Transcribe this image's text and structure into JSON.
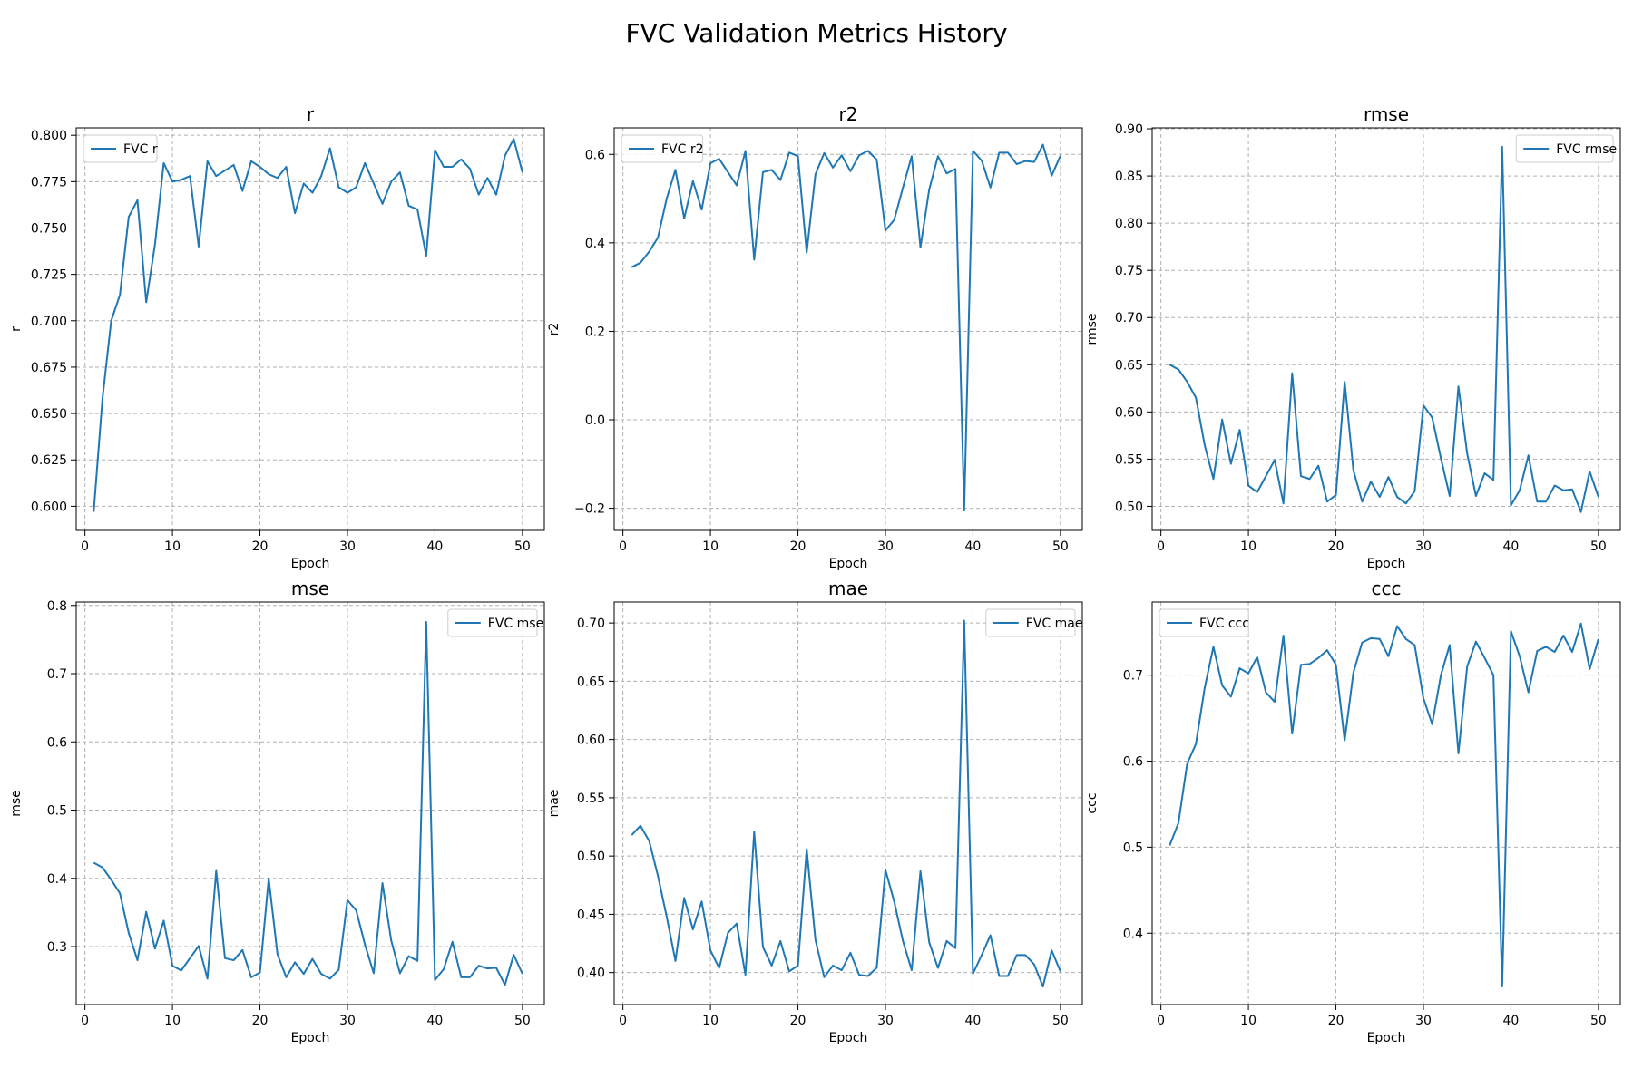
{
  "figure": {
    "title": "FVC Validation Metrics History"
  },
  "colors": {
    "series": "#1f77b4",
    "grid": "#b0b0b0"
  },
  "chart_data": [
    {
      "type": "line",
      "title": "r",
      "xlabel": "Epoch",
      "ylabel": "r",
      "xlim": [
        -1,
        52.5
      ],
      "ylim": [
        0.587,
        0.804
      ],
      "xticks": [
        0,
        10,
        20,
        30,
        40,
        50
      ],
      "yticks": [
        0.6,
        0.625,
        0.65,
        0.675,
        0.7,
        0.725,
        0.75,
        0.775,
        0.8
      ],
      "ytick_labels": [
        "0.600",
        "0.625",
        "0.650",
        "0.675",
        "0.700",
        "0.725",
        "0.750",
        "0.775",
        "0.800"
      ],
      "grid": true,
      "legend": "top-left",
      "series": [
        {
          "name": "FVC r",
          "x": [
            1,
            2,
            3,
            4,
            5,
            6,
            7,
            8,
            9,
            10,
            11,
            12,
            13,
            14,
            15,
            16,
            17,
            18,
            19,
            20,
            21,
            22,
            23,
            24,
            25,
            26,
            27,
            28,
            29,
            30,
            31,
            32,
            33,
            34,
            35,
            36,
            37,
            38,
            39,
            40,
            41,
            42,
            43,
            44,
            45,
            46,
            47,
            48,
            49,
            50
          ],
          "y": [
            0.597,
            0.658,
            0.7,
            0.714,
            0.756,
            0.765,
            0.71,
            0.741,
            0.785,
            0.775,
            0.776,
            0.778,
            0.74,
            0.786,
            0.778,
            0.781,
            0.784,
            0.77,
            0.786,
            0.783,
            0.779,
            0.777,
            0.783,
            0.758,
            0.774,
            0.769,
            0.778,
            0.793,
            0.772,
            0.769,
            0.772,
            0.785,
            0.774,
            0.763,
            0.775,
            0.78,
            0.762,
            0.76,
            0.735,
            0.792,
            0.783,
            0.783,
            0.787,
            0.782,
            0.768,
            0.777,
            0.768,
            0.789,
            0.798,
            0.78
          ]
        }
      ]
    },
    {
      "type": "line",
      "title": "r2",
      "xlabel": "Epoch",
      "ylabel": "r2",
      "xlim": [
        -1,
        52.5
      ],
      "ylim": [
        -0.25,
        0.66
      ],
      "xticks": [
        0,
        10,
        20,
        30,
        40,
        50
      ],
      "yticks": [
        -0.2,
        0.0,
        0.2,
        0.4,
        0.6
      ],
      "ytick_labels": [
        "−0.2",
        "0.0",
        "0.2",
        "0.4",
        "0.6"
      ],
      "grid": true,
      "legend": "top-left",
      "series": [
        {
          "name": "FVC r2",
          "x": [
            1,
            2,
            3,
            4,
            5,
            6,
            7,
            8,
            9,
            10,
            11,
            12,
            13,
            14,
            15,
            16,
            17,
            18,
            19,
            20,
            21,
            22,
            23,
            24,
            25,
            26,
            27,
            28,
            29,
            30,
            31,
            32,
            33,
            34,
            35,
            36,
            37,
            38,
            39,
            40,
            41,
            42,
            43,
            44,
            45,
            46,
            47,
            48,
            49,
            50
          ],
          "y": [
            0.345,
            0.355,
            0.38,
            0.412,
            0.5,
            0.565,
            0.455,
            0.54,
            0.475,
            0.58,
            0.59,
            0.56,
            0.53,
            0.608,
            0.362,
            0.56,
            0.565,
            0.542,
            0.604,
            0.596,
            0.378,
            0.555,
            0.603,
            0.57,
            0.598,
            0.562,
            0.598,
            0.608,
            0.588,
            0.428,
            0.452,
            0.525,
            0.596,
            0.39,
            0.52,
            0.596,
            0.557,
            0.567,
            -0.205,
            0.608,
            0.586,
            0.525,
            0.604,
            0.604,
            0.578,
            0.585,
            0.583,
            0.622,
            0.552,
            0.597
          ]
        }
      ]
    },
    {
      "type": "line",
      "title": "rmse",
      "xlabel": "Epoch",
      "ylabel": "rmse",
      "xlim": [
        -1,
        52.5
      ],
      "ylim": [
        0.4745,
        0.901
      ],
      "xticks": [
        0,
        10,
        20,
        30,
        40,
        50
      ],
      "yticks": [
        0.5,
        0.55,
        0.6,
        0.65,
        0.7,
        0.75,
        0.8,
        0.85,
        0.9
      ],
      "ytick_labels": [
        "0.50",
        "0.55",
        "0.60",
        "0.65",
        "0.70",
        "0.75",
        "0.80",
        "0.85",
        "0.90"
      ],
      "grid": true,
      "legend": "top-right",
      "series": [
        {
          "name": "FVC rmse",
          "x": [
            1,
            2,
            3,
            4,
            5,
            6,
            7,
            8,
            9,
            10,
            11,
            12,
            13,
            14,
            15,
            16,
            17,
            18,
            19,
            20,
            21,
            22,
            23,
            24,
            25,
            26,
            27,
            28,
            29,
            30,
            31,
            32,
            33,
            34,
            35,
            36,
            37,
            38,
            39,
            40,
            41,
            42,
            43,
            44,
            45,
            46,
            47,
            48,
            49,
            50
          ],
          "y": [
            0.65,
            0.645,
            0.632,
            0.615,
            0.565,
            0.529,
            0.592,
            0.545,
            0.581,
            0.522,
            0.515,
            0.532,
            0.549,
            0.503,
            0.641,
            0.532,
            0.529,
            0.543,
            0.505,
            0.512,
            0.632,
            0.538,
            0.505,
            0.526,
            0.51,
            0.531,
            0.51,
            0.503,
            0.516,
            0.607,
            0.594,
            0.551,
            0.511,
            0.627,
            0.556,
            0.511,
            0.535,
            0.528,
            0.881,
            0.501,
            0.517,
            0.554,
            0.505,
            0.505,
            0.522,
            0.517,
            0.518,
            0.494,
            0.537,
            0.51
          ]
        }
      ]
    },
    {
      "type": "line",
      "title": "mse",
      "xlabel": "Epoch",
      "ylabel": "mse",
      "xlim": [
        -1,
        52.5
      ],
      "ylim": [
        0.215,
        0.805
      ],
      "xticks": [
        0,
        10,
        20,
        30,
        40,
        50
      ],
      "yticks": [
        0.3,
        0.4,
        0.5,
        0.6,
        0.7,
        0.8
      ],
      "ytick_labels": [
        "0.3",
        "0.4",
        "0.5",
        "0.6",
        "0.7",
        "0.8"
      ],
      "grid": true,
      "legend": "top-right",
      "series": [
        {
          "name": "FVC mse",
          "x": [
            1,
            2,
            3,
            4,
            5,
            6,
            7,
            8,
            9,
            10,
            11,
            12,
            13,
            14,
            15,
            16,
            17,
            18,
            19,
            20,
            21,
            22,
            23,
            24,
            25,
            26,
            27,
            28,
            29,
            30,
            31,
            32,
            33,
            34,
            35,
            36,
            37,
            38,
            39,
            40,
            41,
            42,
            43,
            44,
            45,
            46,
            47,
            48,
            49,
            50
          ],
          "y": [
            0.423,
            0.416,
            0.398,
            0.378,
            0.32,
            0.28,
            0.351,
            0.297,
            0.338,
            0.272,
            0.265,
            0.283,
            0.301,
            0.253,
            0.411,
            0.283,
            0.28,
            0.295,
            0.255,
            0.262,
            0.4,
            0.289,
            0.255,
            0.277,
            0.26,
            0.282,
            0.26,
            0.253,
            0.266,
            0.368,
            0.353,
            0.303,
            0.261,
            0.393,
            0.309,
            0.261,
            0.286,
            0.279,
            0.776,
            0.251,
            0.267,
            0.307,
            0.255,
            0.255,
            0.272,
            0.268,
            0.269,
            0.244,
            0.288,
            0.26
          ]
        }
      ]
    },
    {
      "type": "line",
      "title": "mae",
      "xlabel": "Epoch",
      "ylabel": "mae",
      "xlim": [
        -1,
        52.5
      ],
      "ylim": [
        0.3725,
        0.718
      ],
      "xticks": [
        0,
        10,
        20,
        30,
        40,
        50
      ],
      "yticks": [
        0.4,
        0.45,
        0.5,
        0.55,
        0.6,
        0.65,
        0.7
      ],
      "ytick_labels": [
        "0.40",
        "0.45",
        "0.50",
        "0.55",
        "0.60",
        "0.65",
        "0.70"
      ],
      "grid": true,
      "legend": "top-right",
      "series": [
        {
          "name": "FVC mae",
          "x": [
            1,
            2,
            3,
            4,
            5,
            6,
            7,
            8,
            9,
            10,
            11,
            12,
            13,
            14,
            15,
            16,
            17,
            18,
            19,
            20,
            21,
            22,
            23,
            24,
            25,
            26,
            27,
            28,
            29,
            30,
            31,
            32,
            33,
            34,
            35,
            36,
            37,
            38,
            39,
            40,
            41,
            42,
            43,
            44,
            45,
            46,
            47,
            48,
            49,
            50
          ],
          "y": [
            0.518,
            0.526,
            0.513,
            0.483,
            0.448,
            0.41,
            0.464,
            0.437,
            0.461,
            0.419,
            0.404,
            0.434,
            0.442,
            0.398,
            0.521,
            0.422,
            0.406,
            0.427,
            0.401,
            0.406,
            0.506,
            0.428,
            0.396,
            0.406,
            0.402,
            0.417,
            0.398,
            0.397,
            0.404,
            0.488,
            0.461,
            0.427,
            0.402,
            0.487,
            0.426,
            0.404,
            0.427,
            0.421,
            0.702,
            0.399,
            0.415,
            0.432,
            0.397,
            0.397,
            0.415,
            0.415,
            0.407,
            0.388,
            0.419,
            0.401
          ]
        }
      ]
    },
    {
      "type": "line",
      "title": "ccc",
      "xlabel": "Epoch",
      "ylabel": "ccc",
      "xlim": [
        -1,
        52.5
      ],
      "ylim": [
        0.317,
        0.785
      ],
      "xticks": [
        0,
        10,
        20,
        30,
        40,
        50
      ],
      "yticks": [
        0.4,
        0.5,
        0.6,
        0.7
      ],
      "ytick_labels": [
        "0.4",
        "0.5",
        "0.6",
        "0.7"
      ],
      "grid": true,
      "legend": "top-left",
      "series": [
        {
          "name": "FVC ccc",
          "x": [
            1,
            2,
            3,
            4,
            5,
            6,
            7,
            8,
            9,
            10,
            11,
            12,
            13,
            14,
            15,
            16,
            17,
            18,
            19,
            20,
            21,
            22,
            23,
            24,
            25,
            26,
            27,
            28,
            29,
            30,
            31,
            32,
            33,
            34,
            35,
            36,
            37,
            38,
            39,
            40,
            41,
            42,
            43,
            44,
            45,
            46,
            47,
            48,
            49,
            50
          ],
          "y": [
            0.502,
            0.528,
            0.597,
            0.62,
            0.685,
            0.733,
            0.688,
            0.675,
            0.708,
            0.702,
            0.721,
            0.68,
            0.669,
            0.746,
            0.632,
            0.712,
            0.713,
            0.72,
            0.729,
            0.712,
            0.624,
            0.703,
            0.738,
            0.743,
            0.742,
            0.722,
            0.757,
            0.742,
            0.735,
            0.673,
            0.643,
            0.7,
            0.735,
            0.609,
            0.71,
            0.739,
            0.72,
            0.7,
            0.338,
            0.751,
            0.722,
            0.68,
            0.728,
            0.733,
            0.727,
            0.746,
            0.727,
            0.76,
            0.707,
            0.742
          ]
        }
      ]
    }
  ]
}
